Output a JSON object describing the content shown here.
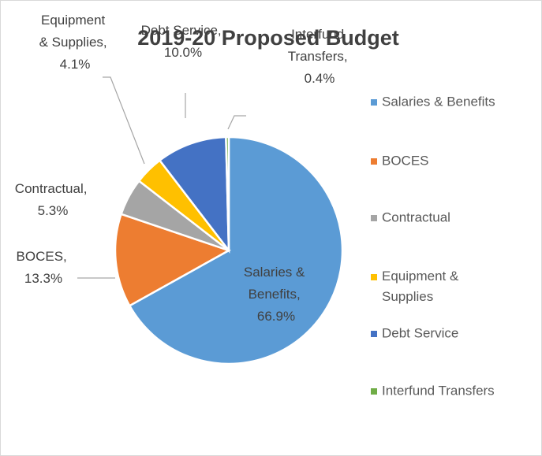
{
  "chart_data": {
    "type": "pie",
    "title": "2019-20 Proposed Budget",
    "categories": [
      "Salaries & Benefits",
      "BOCES",
      "Contractual",
      "Equipment & Supplies",
      "Debt Service",
      "Interfund Transfers"
    ],
    "values": [
      66.9,
      13.3,
      5.3,
      4.1,
      10.0,
      0.4
    ],
    "value_labels": [
      "Salaries & Benefits, 66.9%",
      "BOCES, 13.3%",
      "Contractual, 5.3%",
      "Equipment & Supplies, 4.1%",
      "Debt Service, 10.0%",
      "Interfund Transfers, 0.4%"
    ],
    "colors": [
      "#5B9BD5",
      "#ED7D31",
      "#A5A5A5",
      "#FFC000",
      "#4472C4",
      "#70AD47"
    ],
    "legend": "right"
  }
}
